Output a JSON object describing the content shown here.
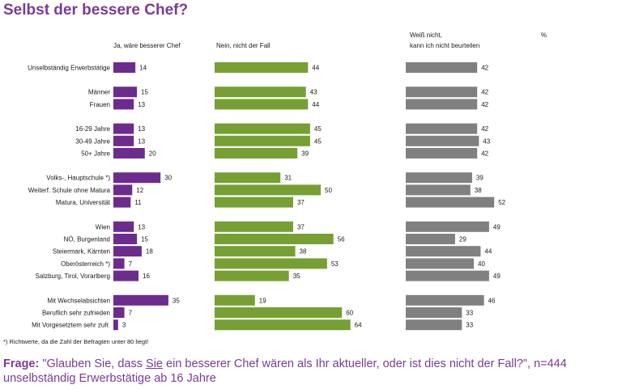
{
  "title": "Selbst der bessere Chef?",
  "columns": [
    {
      "label": "Ja, wäre besserer Chef"
    },
    {
      "label": "Nein, nicht der Fall"
    },
    {
      "label_line1": "Weiß nicht,",
      "label_line2": "kann ich nicht beurteilen"
    }
  ],
  "percent_label": "%",
  "colors": {
    "ja": "#6b2c8e",
    "nein": "#76a034",
    "weiss_nicht": "#808080",
    "title": "#7a3b97"
  },
  "chart_data": {
    "type": "bar",
    "orientation": "horizontal",
    "unit": "%",
    "categories": [
      "Unselbständig Erwerbstätige",
      "Männer",
      "Frauen",
      "16-29 Jahre",
      "30-49 Jahre",
      "50+ Jahre",
      "Volks-, Hauptschule *)",
      "Weiterf. Schule ohne Matura",
      "Matura, Universität",
      "Wien",
      "NÖ, Burgenland",
      "Steiermark, Kärnten",
      "Oberösterreich *)",
      "Salzburg, Tirol, Vorarlberg",
      "Mit Wechselabsichten",
      "Beruflich sehr zufrieden",
      "Mit Vorgesetztem sehr zufr."
    ],
    "groups": [
      [
        0
      ],
      [
        1,
        2
      ],
      [
        3,
        4,
        5
      ],
      [
        6,
        7,
        8
      ],
      [
        9,
        10,
        11,
        12,
        13
      ],
      [
        14,
        15,
        16
      ]
    ],
    "series": [
      {
        "name": "Ja, wäre besserer Chef",
        "values": [
          14,
          15,
          13,
          13,
          13,
          20,
          30,
          12,
          11,
          13,
          15,
          18,
          7,
          16,
          35,
          7,
          3
        ]
      },
      {
        "name": "Nein, nicht der Fall",
        "values": [
          44,
          43,
          44,
          45,
          45,
          39,
          31,
          50,
          37,
          37,
          56,
          38,
          53,
          35,
          19,
          60,
          64
        ]
      },
      {
        "name": "Weiß nicht, kann ich nicht beurteilen",
        "values": [
          42,
          42,
          42,
          42,
          43,
          42,
          39,
          38,
          52,
          49,
          29,
          44,
          40,
          49,
          46,
          33,
          33
        ]
      }
    ]
  },
  "footnote": "*) Richtwerte, da die Zahl der Befragten unter 80 liegt!",
  "question": {
    "label": "Frage:",
    "text_before": " \"Glauben Sie, dass ",
    "emphasis": "Sie",
    "text_after": " ein besserer Chef wären als Ihr aktueller, oder ist dies nicht der Fall?\", n=444 unselbständig Erwerbstätige ab 16 Jahre"
  }
}
